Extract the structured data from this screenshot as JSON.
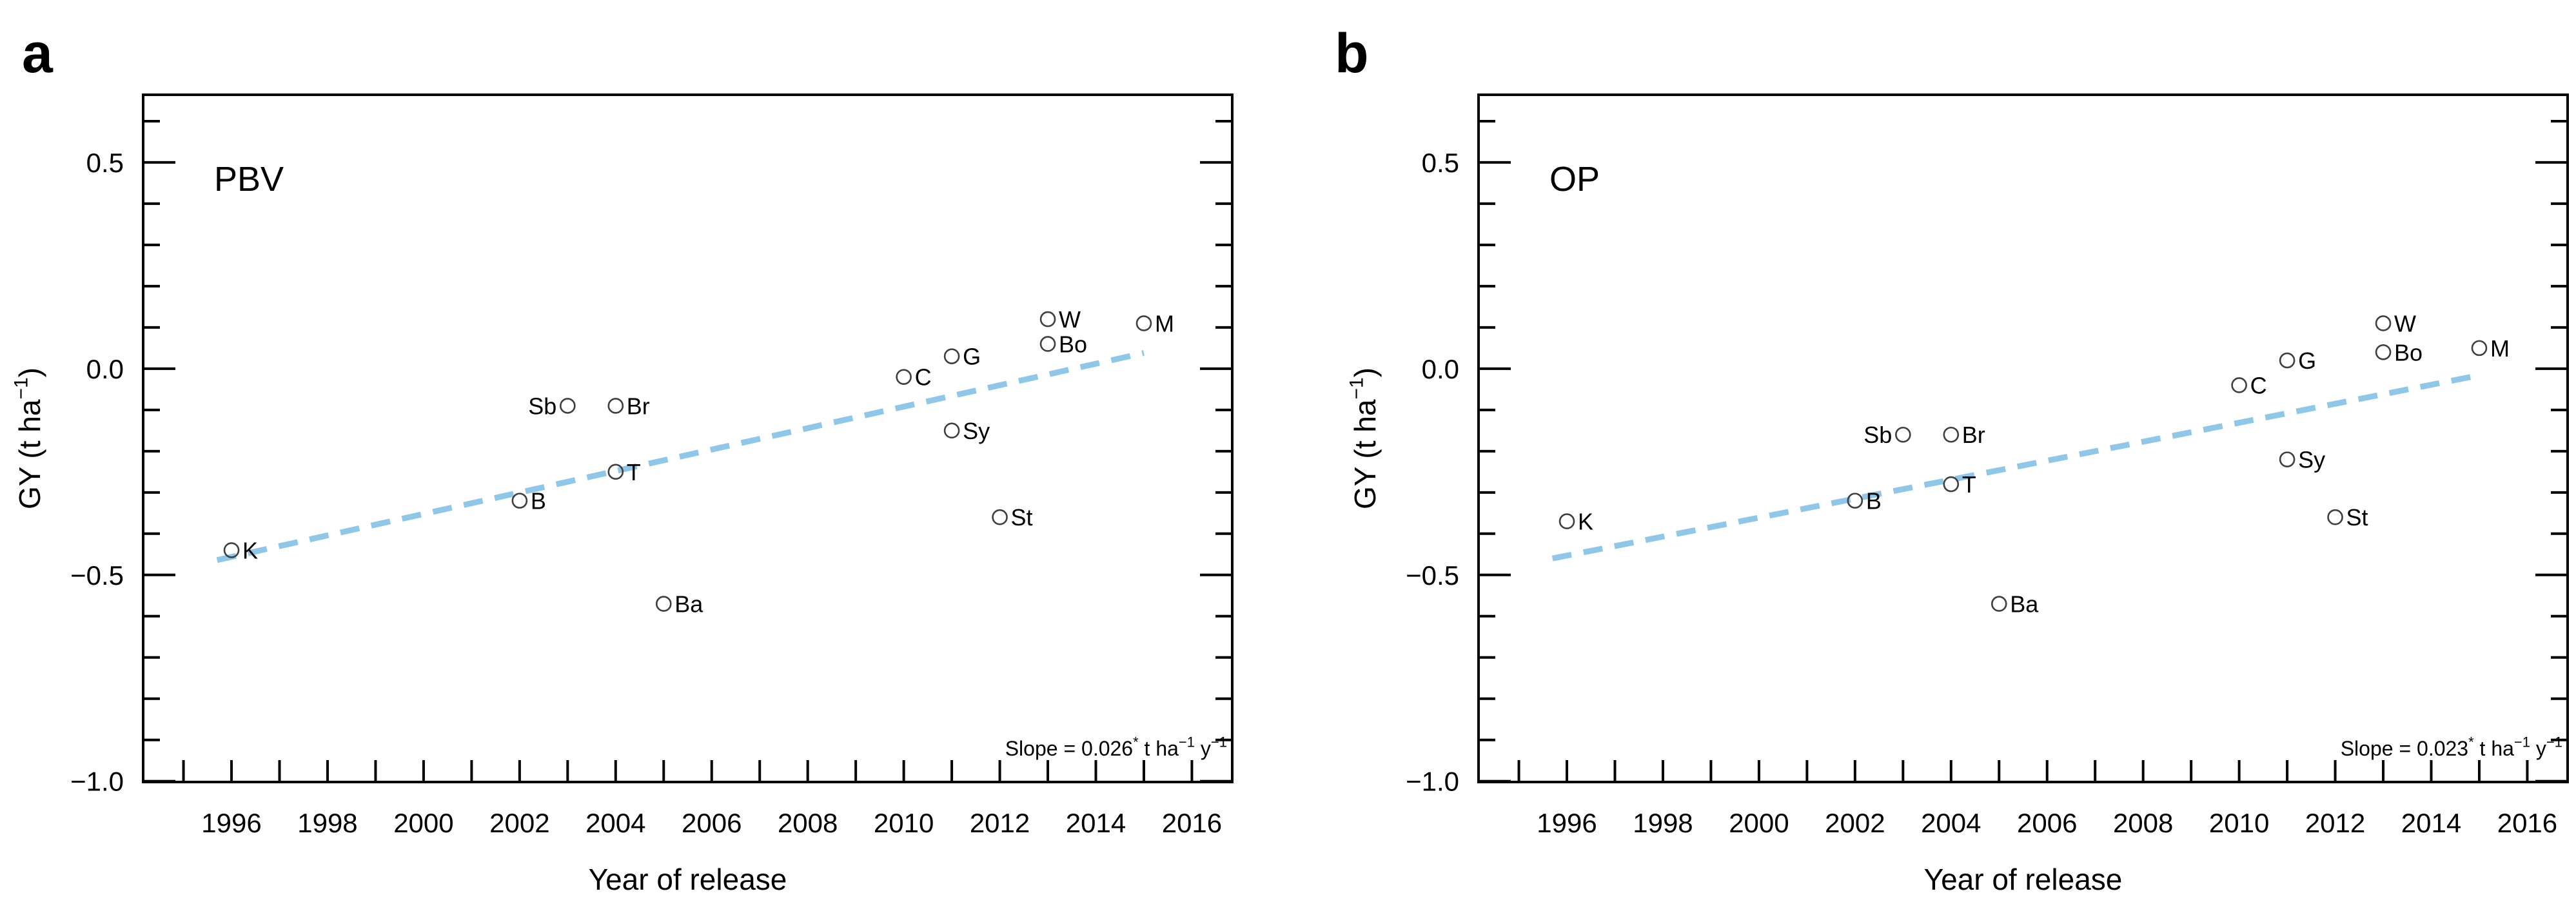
{
  "figure": {
    "background_color": "#ffffff",
    "axis_color": "#000000",
    "marker_color": "#3f3f3f",
    "trend_color": "#8FC7E8",
    "xlabel": "Year of release",
    "ylabel_parts": [
      {
        "t": "GY (t ha"
      },
      {
        "t": "−1",
        "sup": true
      },
      {
        "t": ")"
      }
    ]
  },
  "chart_data": [
    {
      "type": "scatter",
      "panel_letter": "a",
      "title": "PBV",
      "xlabel": "Year of release",
      "ylabel": "GY (t ha−1)",
      "xlim": [
        1994.16,
        2016.84
      ],
      "ylim": [
        -1.002,
        0.664
      ],
      "x_tick_labels": [
        "1996",
        "1998",
        "2000",
        "2002",
        "2004",
        "2006",
        "2008",
        "2010",
        "2012",
        "2014",
        "2016"
      ],
      "x_tick_values": [
        1996,
        1998,
        2000,
        2002,
        2004,
        2006,
        2008,
        2010,
        2012,
        2014,
        2016
      ],
      "x_minor_step": 1,
      "y_tick_labels": [
        "0.5",
        "0.0",
        "−0.5",
        "−1.0"
      ],
      "y_tick_values": [
        0.5,
        0.0,
        -0.5,
        -1.0
      ],
      "y_minor_step": 0.1,
      "grid": false,
      "points": [
        {
          "label": "K",
          "x": 1996,
          "y": -0.44,
          "side": "right"
        },
        {
          "label": "B",
          "x": 2002,
          "y": -0.32,
          "side": "right"
        },
        {
          "label": "Sb",
          "x": 2003,
          "y": -0.09,
          "side": "left"
        },
        {
          "label": "Br",
          "x": 2004,
          "y": -0.09,
          "side": "right"
        },
        {
          "label": "T",
          "x": 2004,
          "y": -0.25,
          "side": "right"
        },
        {
          "label": "Ba",
          "x": 2005,
          "y": -0.57,
          "side": "right"
        },
        {
          "label": "C",
          "x": 2010,
          "y": -0.02,
          "side": "right"
        },
        {
          "label": "G",
          "x": 2011,
          "y": 0.03,
          "side": "right"
        },
        {
          "label": "Sy",
          "x": 2011,
          "y": -0.15,
          "side": "right"
        },
        {
          "label": "St",
          "x": 2012,
          "y": -0.36,
          "side": "right"
        },
        {
          "label": "W",
          "x": 2013,
          "y": 0.12,
          "side": "right"
        },
        {
          "label": "Bo",
          "x": 2013,
          "y": 0.06,
          "side": "right"
        },
        {
          "label": "M",
          "x": 2015,
          "y": 0.11,
          "side": "right"
        }
      ],
      "trend": {
        "slope_per_year": 0.026,
        "x1": 1995.7,
        "y1": -0.464,
        "x2": 2015.0,
        "y2": 0.038,
        "dashed": true
      },
      "slope_annotation_parts": [
        {
          "t": "Slope = 0.026"
        },
        {
          "t": "*",
          "sup": true
        },
        {
          "t": " t ha"
        },
        {
          "t": "−1",
          "sup": true
        },
        {
          "t": " y"
        },
        {
          "t": "−1",
          "sup": true
        }
      ]
    },
    {
      "type": "scatter",
      "panel_letter": "b",
      "title": "OP",
      "xlabel": "Year of release",
      "ylabel": "GY (t ha−1)",
      "xlim": [
        1994.16,
        2016.84
      ],
      "ylim": [
        -1.002,
        0.664
      ],
      "x_tick_labels": [
        "1996",
        "1998",
        "2000",
        "2002",
        "2004",
        "2006",
        "2008",
        "2010",
        "2012",
        "2014",
        "2016"
      ],
      "x_tick_values": [
        1996,
        1998,
        2000,
        2002,
        2004,
        2006,
        2008,
        2010,
        2012,
        2014,
        2016
      ],
      "x_minor_step": 1,
      "y_tick_labels": [
        "0.5",
        "0.0",
        "−0.5",
        "−1.0"
      ],
      "y_tick_values": [
        0.5,
        0.0,
        -0.5,
        -1.0
      ],
      "y_minor_step": 0.1,
      "grid": false,
      "points": [
        {
          "label": "K",
          "x": 1996,
          "y": -0.37,
          "side": "right"
        },
        {
          "label": "B",
          "x": 2002,
          "y": -0.32,
          "side": "right"
        },
        {
          "label": "Sb",
          "x": 2003,
          "y": -0.16,
          "side": "left"
        },
        {
          "label": "Br",
          "x": 2004,
          "y": -0.16,
          "side": "right"
        },
        {
          "label": "T",
          "x": 2004,
          "y": -0.28,
          "side": "right"
        },
        {
          "label": "Ba",
          "x": 2005,
          "y": -0.57,
          "side": "right"
        },
        {
          "label": "C",
          "x": 2010,
          "y": -0.04,
          "side": "right"
        },
        {
          "label": "G",
          "x": 2011,
          "y": 0.02,
          "side": "right"
        },
        {
          "label": "Sy",
          "x": 2011,
          "y": -0.22,
          "side": "right"
        },
        {
          "label": "St",
          "x": 2012,
          "y": -0.36,
          "side": "right"
        },
        {
          "label": "W",
          "x": 2013,
          "y": 0.11,
          "side": "right"
        },
        {
          "label": "Bo",
          "x": 2013,
          "y": 0.04,
          "side": "right"
        },
        {
          "label": "M",
          "x": 2015,
          "y": 0.05,
          "side": "right"
        }
      ],
      "trend": {
        "slope_per_year": 0.023,
        "x1": 1995.7,
        "y1": -0.46,
        "x2": 2015.0,
        "y2": -0.016,
        "dashed": true
      },
      "slope_annotation_parts": [
        {
          "t": "Slope = 0.023"
        },
        {
          "t": "*",
          "sup": true
        },
        {
          "t": " t ha"
        },
        {
          "t": "−1",
          "sup": true
        },
        {
          "t": " y"
        },
        {
          "t": "−1",
          "sup": true
        }
      ]
    }
  ]
}
